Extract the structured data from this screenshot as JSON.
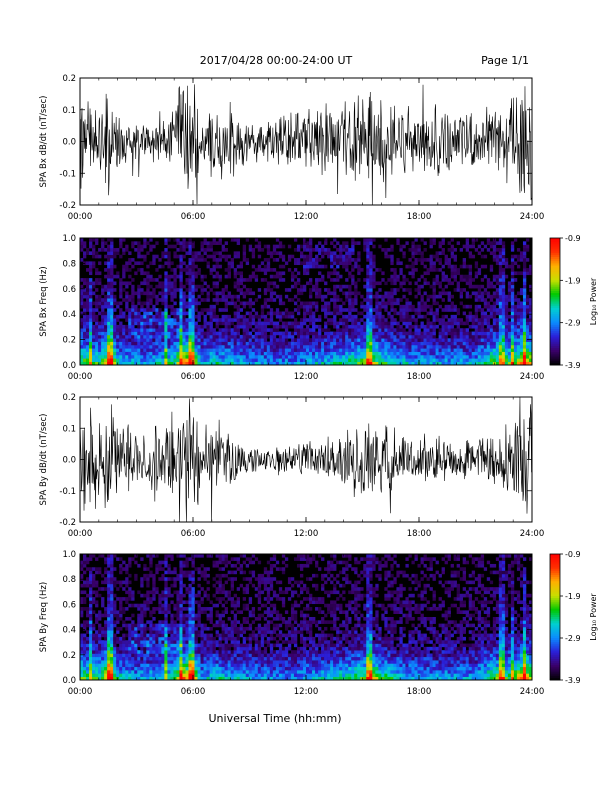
{
  "header": {
    "title": "2017/04/28  00:00-24:00 UT",
    "page": "Page 1/1"
  },
  "footer": {
    "xlabel": "Universal Time (hh:mm)"
  },
  "colorbar": {
    "label": "Log₁₀ Power",
    "ticks": [
      -0.9,
      -1.9,
      -2.9,
      -3.9
    ],
    "tick_labels": [
      "-0.9",
      "-1.9",
      "-2.9",
      "-3.9"
    ],
    "range": [
      -3.9,
      -0.9
    ],
    "colormap": [
      "#000000",
      "#3a006a",
      "#2b1fd8",
      "#0b8bff",
      "#00d0d0",
      "#00c800",
      "#c8e000",
      "#ffb000",
      "#ff3000",
      "#ff0000"
    ]
  },
  "chart_data": [
    {
      "type": "line",
      "name": "waveform-bx",
      "ylabel": "SPA Bx dB/dt (nT/sec)",
      "xlim": [
        0,
        24
      ],
      "ylim": [
        -0.2,
        0.2
      ],
      "x_ticks": [
        "00:00",
        "06:00",
        "12:00",
        "18:00",
        "24:00"
      ],
      "y_ticks": [
        "0.2",
        "0.1",
        "0.0",
        "-0.1",
        "-0.2"
      ],
      "y_tick_values": [
        0.2,
        0.1,
        0.0,
        -0.1,
        -0.2
      ],
      "x": [
        0,
        1,
        1.6,
        2,
        3,
        4,
        5,
        5.5,
        5.9,
        6.5,
        7,
        8,
        9,
        10,
        11,
        12,
        13,
        14,
        15,
        15.5,
        16,
        17,
        18,
        19,
        20,
        21,
        22,
        23,
        23.5,
        24
      ],
      "amplitude": [
        0.2,
        0.1,
        0.2,
        0.08,
        0.06,
        0.06,
        0.09,
        0.2,
        0.2,
        0.07,
        0.12,
        0.12,
        0.07,
        0.07,
        0.08,
        0.1,
        0.11,
        0.12,
        0.13,
        0.15,
        0.13,
        0.11,
        0.1,
        0.1,
        0.08,
        0.08,
        0.11,
        0.13,
        0.2,
        0.2
      ],
      "color": "#000000"
    },
    {
      "type": "heatmap",
      "name": "spectrogram-bx",
      "ylabel": "SPA Bx Freq (Hz)",
      "xlim": [
        0,
        24
      ],
      "ylim": [
        0.0,
        1.0
      ],
      "x_ticks": [
        "00:00",
        "06:00",
        "12:00",
        "18:00",
        "24:00"
      ],
      "y_ticks": [
        "1.0",
        "0.8",
        "0.6",
        "0.4",
        "0.2",
        "0.0"
      ],
      "y_tick_values": [
        1.0,
        0.8,
        0.6,
        0.4,
        0.2,
        0.0
      ],
      "value_range": [
        -3.9,
        -0.9
      ]
    },
    {
      "type": "line",
      "name": "waveform-by",
      "ylabel": "SPA By dB/dt (nT/sec)",
      "xlim": [
        0,
        24
      ],
      "ylim": [
        -0.2,
        0.2
      ],
      "x_ticks": [
        "00:00",
        "06:00",
        "12:00",
        "18:00",
        "24:00"
      ],
      "y_ticks": [
        "0.2",
        "0.1",
        "0.0",
        "-0.1",
        "-0.2"
      ],
      "y_tick_values": [
        0.2,
        0.1,
        0.0,
        -0.1,
        -0.2
      ],
      "x": [
        0,
        1,
        1.6,
        2,
        3,
        4,
        5,
        5.5,
        5.9,
        6.5,
        7,
        8,
        9,
        10,
        11,
        12,
        13,
        14,
        15,
        15.5,
        16,
        17,
        18,
        19,
        20,
        21,
        22,
        23,
        23.5,
        24
      ],
      "amplitude": [
        0.2,
        0.12,
        0.2,
        0.1,
        0.09,
        0.1,
        0.12,
        0.2,
        0.2,
        0.09,
        0.12,
        0.08,
        0.05,
        0.04,
        0.05,
        0.06,
        0.07,
        0.08,
        0.12,
        0.14,
        0.12,
        0.09,
        0.07,
        0.07,
        0.06,
        0.06,
        0.08,
        0.12,
        0.2,
        0.2
      ],
      "color": "#000000"
    },
    {
      "type": "heatmap",
      "name": "spectrogram-by",
      "ylabel": "SPA By Freq (Hz)",
      "xlim": [
        0,
        24
      ],
      "ylim": [
        0.0,
        1.0
      ],
      "x_ticks": [
        "00:00",
        "06:00",
        "12:00",
        "18:00",
        "24:00"
      ],
      "y_ticks": [
        "1.0",
        "0.8",
        "0.6",
        "0.4",
        "0.2",
        "0.0"
      ],
      "y_tick_values": [
        1.0,
        0.8,
        0.6,
        0.4,
        0.2,
        0.0
      ],
      "value_range": [
        -3.9,
        -0.9
      ]
    }
  ]
}
